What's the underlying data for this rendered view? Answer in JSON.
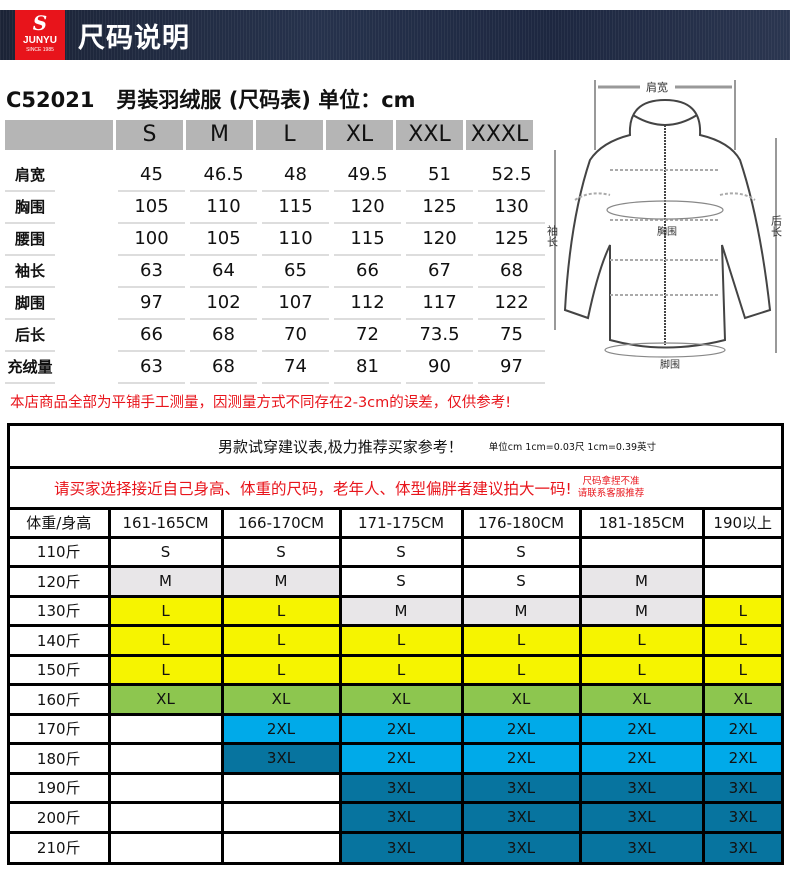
{
  "brand": {
    "logo_text": "JUNYU",
    "logo_sub": "SINCE 1985",
    "banner_title": "尺码说明"
  },
  "title": "C52021   男装羽绒服 (尺码表) 单位：cm",
  "size_table": {
    "headers": [
      "",
      "S",
      "M",
      "L",
      "XL",
      "XXL",
      "XXXL"
    ],
    "rows": [
      [
        "肩宽",
        "45",
        "46.5",
        "48",
        "49.5",
        "51",
        "52.5"
      ],
      [
        "胸围",
        "105",
        "110",
        "115",
        "120",
        "125",
        "130"
      ],
      [
        "腰围",
        "100",
        "105",
        "110",
        "115",
        "120",
        "125"
      ],
      [
        "袖长",
        "63",
        "64",
        "65",
        "66",
        "67",
        "68"
      ],
      [
        "脚围",
        "97",
        "102",
        "107",
        "112",
        "117",
        "122"
      ],
      [
        "后长",
        "66",
        "68",
        "70",
        "72",
        "73.5",
        "75"
      ],
      [
        "充绒量",
        "63",
        "68",
        "74",
        "81",
        "90",
        "97"
      ]
    ]
  },
  "note": "本店商品全部为平铺手工测量，因测量方式不同存在2-3cm的误差，仅供参考!",
  "diagram": {
    "shoulder": "肩宽",
    "chest": "胸围",
    "hem": "脚围",
    "sleeve": "袖长",
    "back": "后长"
  },
  "rec": {
    "title": "男款试穿建议表,极力推荐买家参考！",
    "unit": "单位cm 1cm=0.03尺 1cm=0.39英寸",
    "advice": "请买家选择接近自己身高、体重的尺码，老年人、体型偏胖者建议拍大一码!",
    "tip1": "尺码拿捏不准",
    "tip2": "请联系客服推荐",
    "headers": [
      "体重/身高",
      "161-165CM",
      "166-170CM",
      "171-175CM",
      "176-180CM",
      "181-185CM",
      "190以上"
    ],
    "rows": [
      [
        "110斤",
        "S",
        "S",
        "S",
        "S",
        "",
        ""
      ],
      [
        "120斤",
        "M",
        "M",
        "S",
        "S",
        "M",
        ""
      ],
      [
        "130斤",
        "L",
        "L",
        "M",
        "M",
        "M",
        "L"
      ],
      [
        "140斤",
        "L",
        "L",
        "L",
        "L",
        "L",
        "L"
      ],
      [
        "150斤",
        "L",
        "L",
        "L",
        "L",
        "L",
        "L"
      ],
      [
        "160斤",
        "XL",
        "XL",
        "XL",
        "XL",
        "XL",
        "XL"
      ],
      [
        "170斤",
        "",
        "2XL",
        "2XL",
        "2XL",
        "2XL",
        "2XL"
      ],
      [
        "180斤",
        "",
        "3XL",
        "2XL",
        "2XL",
        "2XL",
        "2XL"
      ],
      [
        "190斤",
        "",
        "",
        "3XL",
        "3XL",
        "3XL",
        "3XL"
      ],
      [
        "200斤",
        "",
        "",
        "3XL",
        "3XL",
        "3XL",
        "3XL"
      ],
      [
        "210斤",
        "",
        "",
        "3XL",
        "3XL",
        "3XL",
        "3XL"
      ]
    ],
    "colors": {
      "M": "#e8e6e8",
      "L": "#f6f400",
      "XL": "#8dc64f",
      "2XL": "#00aae9",
      "3XL": "#07749f"
    }
  },
  "accent": "#e8141b"
}
